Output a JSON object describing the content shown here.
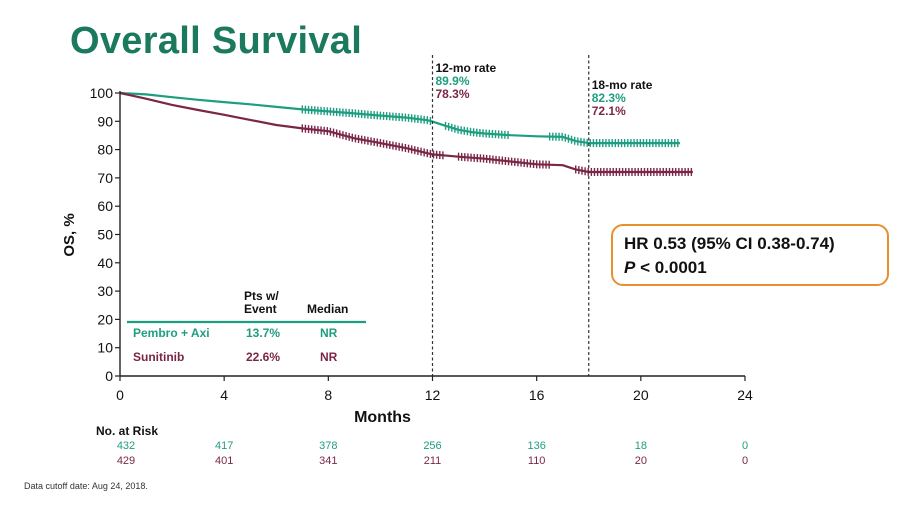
{
  "title": "Overall Survival",
  "hr_box": {
    "line1": "HR 0.53 (95% CI 0.38-0.74)",
    "p_label": "P",
    "p_value": " < 0.0001"
  },
  "legend": {
    "header_events": [
      "Pts w/",
      "Event"
    ],
    "header_median": "Median",
    "rows": [
      {
        "name": "Pembro + Axi",
        "event": "13.7%",
        "median": "NR"
      },
      {
        "name": "Sunitinib",
        "event": "22.6%",
        "median": "NR"
      }
    ]
  },
  "annotations": [
    {
      "x": 12,
      "title": "12-mo rate",
      "values": [
        "89.9%",
        "78.3%"
      ]
    },
    {
      "x": 18,
      "title": "18-mo rate",
      "values": [
        "82.3%",
        "72.1%"
      ]
    }
  ],
  "at_risk": {
    "title": "No. at Risk",
    "times": [
      0,
      4,
      8,
      12,
      16,
      20,
      24
    ],
    "rows": [
      {
        "series": "Pembro + Axi",
        "values": [
          "432",
          "417",
          "378",
          "256",
          "136",
          "18",
          "0"
        ]
      },
      {
        "series": "Sunitinib",
        "values": [
          "429",
          "401",
          "341",
          "211",
          "110",
          "20",
          "0"
        ]
      }
    ]
  },
  "footnote": "Data cutoff date: Aug 24, 2018.",
  "colors": {
    "pembro": "#1e9e80",
    "sunitinib": "#7a2747",
    "title": "#1b7a5e",
    "box_border": "#e8902e"
  },
  "chart_data": {
    "type": "line",
    "xlabel": "Months",
    "ylabel": "OS, %",
    "xlim": [
      0,
      24
    ],
    "ylim": [
      0,
      100
    ],
    "xticks": [
      0,
      4,
      8,
      12,
      16,
      20,
      24
    ],
    "yticks": [
      0,
      10,
      20,
      30,
      40,
      50,
      60,
      70,
      80,
      90,
      100
    ],
    "grid": false,
    "series": [
      {
        "name": "Pembro + Axi",
        "color": "#1e9e80",
        "points": [
          [
            0,
            100
          ],
          [
            1,
            99.5
          ],
          [
            2,
            98.5
          ],
          [
            3,
            97.6
          ],
          [
            4,
            96.8
          ],
          [
            5,
            96
          ],
          [
            6,
            95.1
          ],
          [
            7,
            94.2
          ],
          [
            8,
            93.5
          ],
          [
            9,
            92.8
          ],
          [
            10,
            92
          ],
          [
            11,
            91.3
          ],
          [
            11.8,
            90.4
          ],
          [
            12,
            89.9
          ],
          [
            12.5,
            88.4
          ],
          [
            13,
            87
          ],
          [
            13.5,
            86.2
          ],
          [
            14,
            85.7
          ],
          [
            15,
            85.1
          ],
          [
            16,
            84.7
          ],
          [
            17,
            84.5
          ],
          [
            17.5,
            83
          ],
          [
            18,
            82.3
          ],
          [
            19,
            82.3
          ],
          [
            20,
            82.3
          ],
          [
            21.5,
            82.3
          ]
        ],
        "censor_ranges": [
          [
            7,
            12
          ],
          [
            12.5,
            15
          ],
          [
            16.5,
            21.5
          ]
        ]
      },
      {
        "name": "Sunitinib",
        "color": "#7a2747",
        "points": [
          [
            0,
            100
          ],
          [
            1,
            98
          ],
          [
            2,
            95.8
          ],
          [
            3,
            94
          ],
          [
            4,
            92.3
          ],
          [
            5,
            90.5
          ],
          [
            6,
            88.7
          ],
          [
            7,
            87.5
          ],
          [
            8,
            86.5
          ],
          [
            9,
            84
          ],
          [
            10,
            82.3
          ],
          [
            11,
            80.5
          ],
          [
            12,
            78.3
          ],
          [
            13,
            77.5
          ],
          [
            14,
            76.8
          ],
          [
            15,
            75.8
          ],
          [
            16,
            74.8
          ],
          [
            17,
            74.5
          ],
          [
            17.5,
            73
          ],
          [
            18,
            72.1
          ],
          [
            19,
            72.1
          ],
          [
            20,
            72.1
          ],
          [
            22,
            72.1
          ]
        ],
        "censor_ranges": [
          [
            7,
            12.5
          ],
          [
            13,
            16.5
          ],
          [
            17.5,
            22
          ]
        ]
      }
    ]
  }
}
